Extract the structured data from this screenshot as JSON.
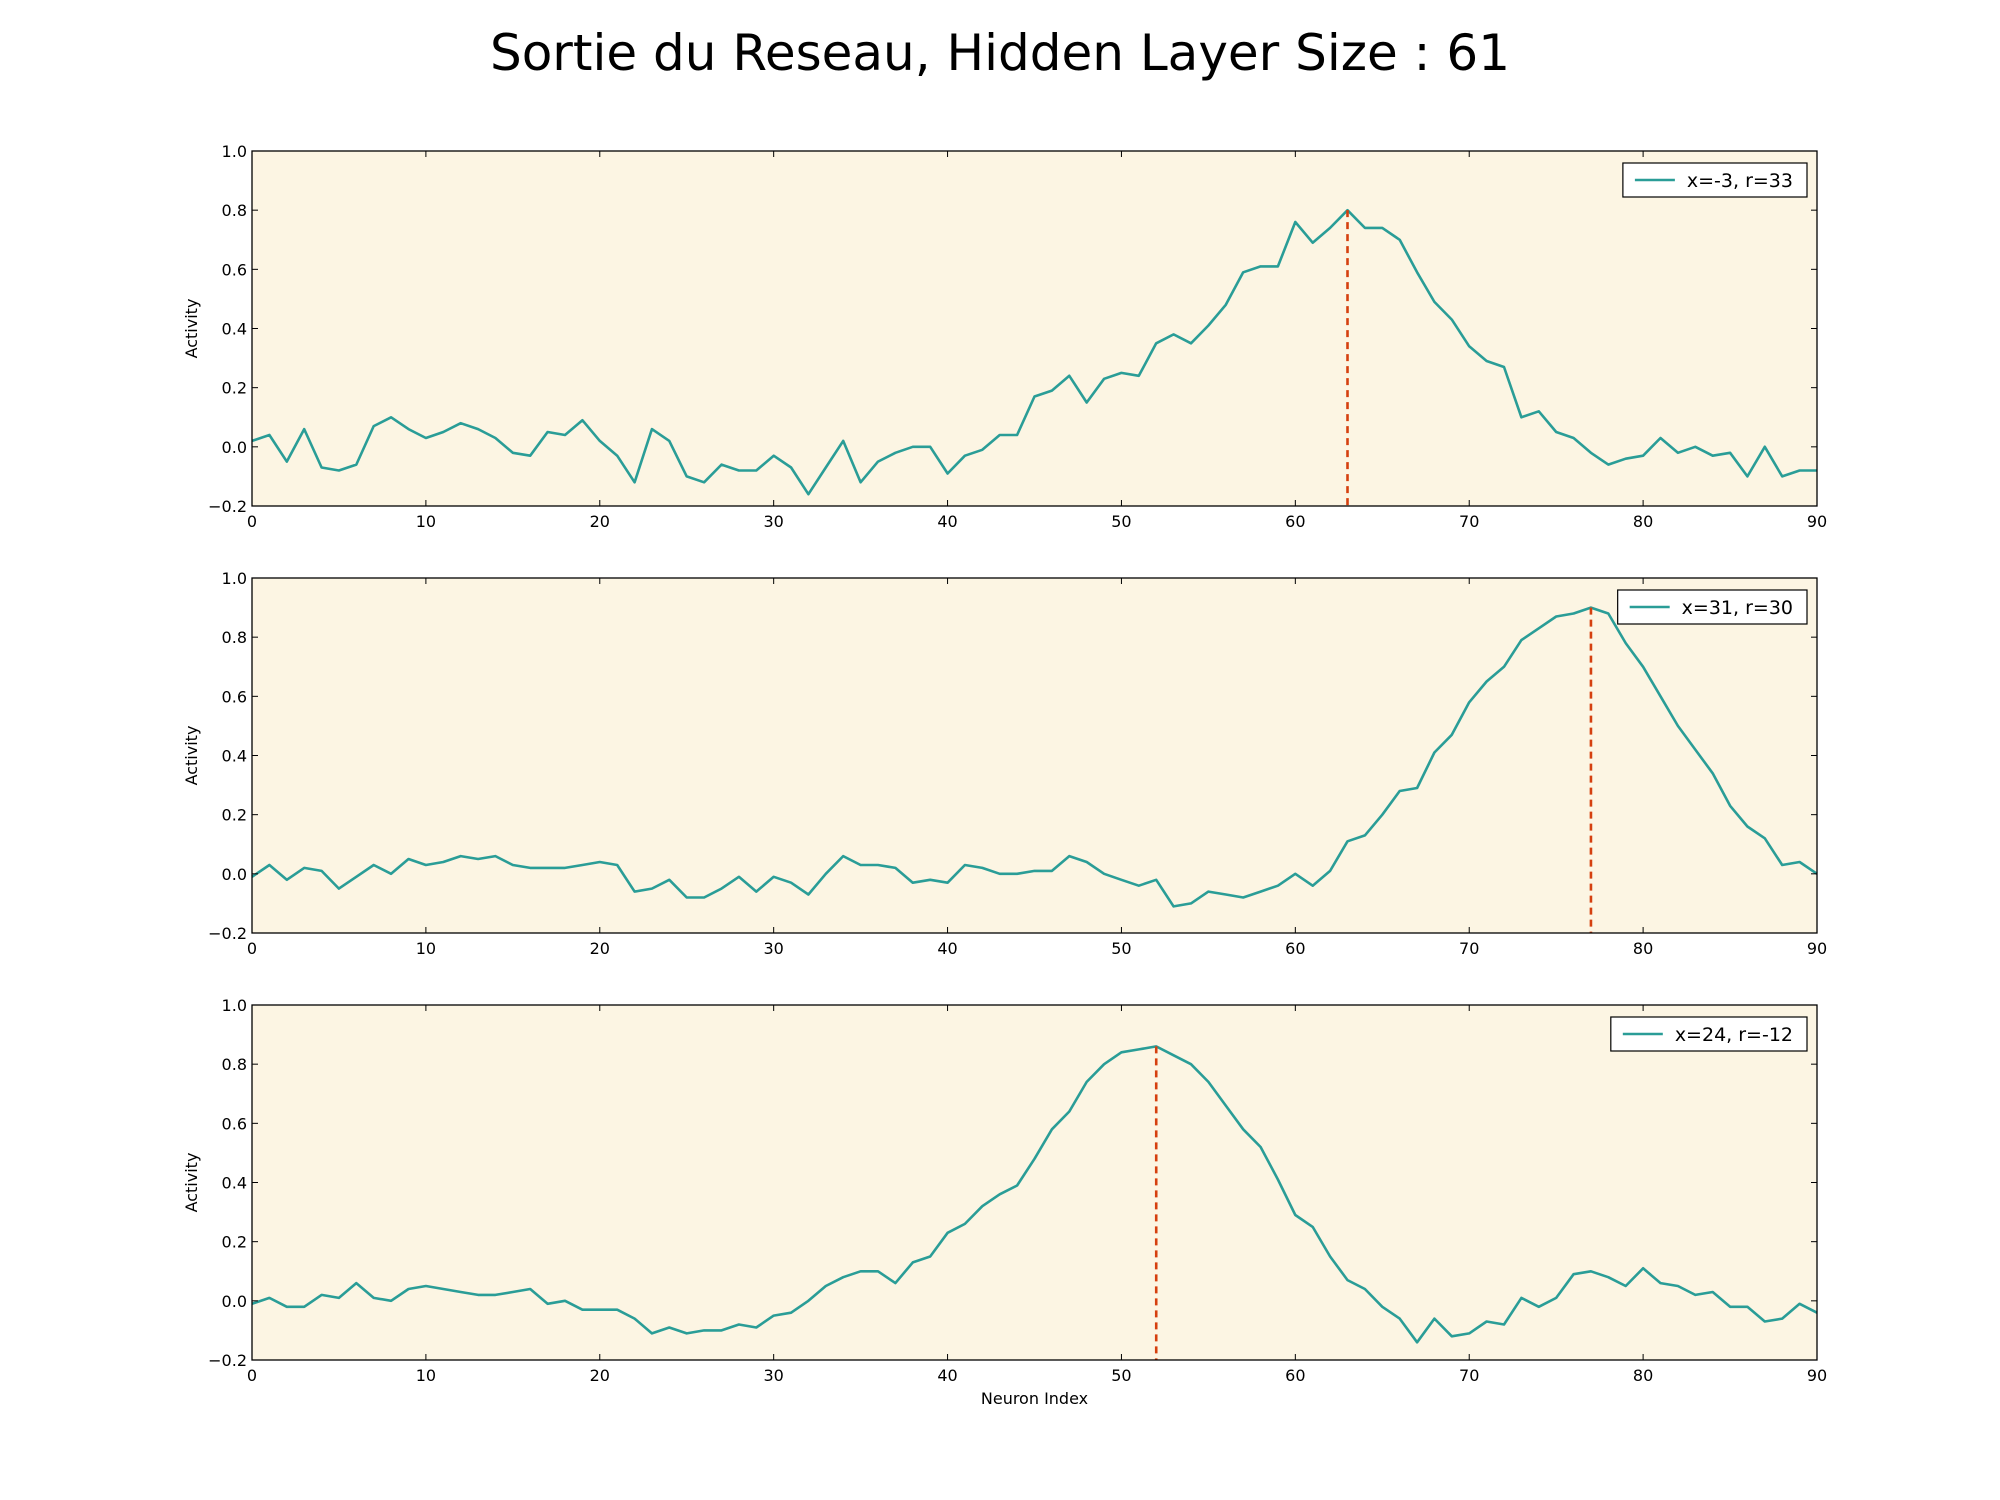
{
  "title": "Sortie du Reseau, Hidden Layer Size : 61",
  "colors": {
    "background": "#ffffff",
    "plot_background": "#fcf5e3",
    "series_line": "#2a9d97",
    "marker_line": "#d5400f",
    "axis": "#000000"
  },
  "chart_data": [
    {
      "type": "line",
      "title": "",
      "xlabel": "",
      "ylabel": "Activity",
      "xlim": [
        0,
        90
      ],
      "ylim": [
        -0.2,
        1.0
      ],
      "xticks": [
        "0",
        "10",
        "20",
        "30",
        "40",
        "50",
        "60",
        "70",
        "80",
        "90"
      ],
      "yticks": [
        "1.0",
        "0.8",
        "0.6",
        "0.4",
        "0.2",
        "0.0",
        "−0.2"
      ],
      "grid": false,
      "legend_position": "top-right",
      "series": [
        {
          "name": "x=-3, r=33",
          "x_start": 0,
          "values": [
            0.02,
            0.04,
            -0.05,
            0.06,
            -0.07,
            -0.08,
            -0.06,
            0.07,
            0.1,
            0.06,
            0.03,
            0.05,
            0.08,
            0.06,
            0.03,
            -0.02,
            -0.03,
            0.05,
            0.04,
            0.09,
            0.02,
            -0.03,
            -0.12,
            0.06,
            0.02,
            -0.1,
            -0.12,
            -0.06,
            -0.08,
            -0.08,
            -0.03,
            -0.07,
            -0.16,
            -0.07,
            0.02,
            -0.12,
            -0.05,
            -0.02,
            0.0,
            0.0,
            -0.09,
            -0.03,
            -0.01,
            0.04,
            0.04,
            0.17,
            0.19,
            0.24,
            0.15,
            0.23,
            0.25,
            0.24,
            0.35,
            0.38,
            0.35,
            0.41,
            0.48,
            0.59,
            0.61,
            0.61,
            0.76,
            0.69,
            0.74,
            0.8,
            0.74,
            0.74,
            0.7,
            0.59,
            0.49,
            0.43,
            0.34,
            0.29,
            0.27,
            0.1,
            0.12,
            0.05,
            0.03,
            -0.02,
            -0.06,
            -0.04,
            -0.03,
            0.03,
            -0.02,
            0.0,
            -0.03,
            -0.02,
            -0.1,
            0.0,
            -0.1,
            -0.08,
            -0.08
          ]
        }
      ],
      "marker_x": 63,
      "marker_y": 0.8
    },
    {
      "type": "line",
      "title": "",
      "xlabel": "",
      "ylabel": "Activity",
      "xlim": [
        0,
        90
      ],
      "ylim": [
        -0.2,
        1.0
      ],
      "xticks": [
        "0",
        "10",
        "20",
        "30",
        "40",
        "50",
        "60",
        "70",
        "80",
        "90"
      ],
      "yticks": [
        "1.0",
        "0.8",
        "0.6",
        "0.4",
        "0.2",
        "0.0",
        "−0.2"
      ],
      "grid": false,
      "legend_position": "top-right",
      "series": [
        {
          "name": "x=31, r=30",
          "x_start": 0,
          "values": [
            -0.01,
            0.03,
            -0.02,
            0.02,
            0.01,
            -0.05,
            -0.01,
            0.03,
            0.0,
            0.05,
            0.03,
            0.04,
            0.06,
            0.05,
            0.06,
            0.03,
            0.02,
            0.02,
            0.02,
            0.03,
            0.04,
            0.03,
            -0.06,
            -0.05,
            -0.02,
            -0.08,
            -0.08,
            -0.05,
            -0.01,
            -0.06,
            -0.01,
            -0.03,
            -0.07,
            0.0,
            0.06,
            0.03,
            0.03,
            0.02,
            -0.03,
            -0.02,
            -0.03,
            0.03,
            0.02,
            0.0,
            0.0,
            0.01,
            0.01,
            0.06,
            0.04,
            0.0,
            -0.02,
            -0.04,
            -0.02,
            -0.11,
            -0.1,
            -0.06,
            -0.07,
            -0.08,
            -0.06,
            -0.04,
            0.0,
            -0.04,
            0.01,
            0.11,
            0.13,
            0.2,
            0.28,
            0.29,
            0.41,
            0.47,
            0.58,
            0.65,
            0.7,
            0.79,
            0.83,
            0.87,
            0.88,
            0.9,
            0.88,
            0.78,
            0.7,
            0.6,
            0.5,
            0.42,
            0.34,
            0.23,
            0.16,
            0.12,
            0.03,
            0.04,
            0.0
          ]
        }
      ],
      "marker_x": 77,
      "marker_y": 0.9
    },
    {
      "type": "line",
      "title": "",
      "xlabel": "Neuron Index",
      "ylabel": "Activity",
      "xlim": [
        0,
        90
      ],
      "ylim": [
        -0.2,
        1.0
      ],
      "xticks": [
        "0",
        "10",
        "20",
        "30",
        "40",
        "50",
        "60",
        "70",
        "80",
        "90"
      ],
      "yticks": [
        "1.0",
        "0.8",
        "0.6",
        "0.4",
        "0.2",
        "0.0",
        "−0.2"
      ],
      "grid": false,
      "legend_position": "top-right",
      "series": [
        {
          "name": "x=24, r=-12",
          "x_start": 0,
          "values": [
            -0.01,
            0.01,
            -0.02,
            -0.02,
            0.02,
            0.01,
            0.06,
            0.01,
            0.0,
            0.04,
            0.05,
            0.04,
            0.03,
            0.02,
            0.02,
            0.03,
            0.04,
            -0.01,
            0.0,
            -0.03,
            -0.03,
            -0.03,
            -0.06,
            -0.11,
            -0.09,
            -0.11,
            -0.1,
            -0.1,
            -0.08,
            -0.09,
            -0.05,
            -0.04,
            0.0,
            0.05,
            0.08,
            0.1,
            0.1,
            0.06,
            0.13,
            0.15,
            0.23,
            0.26,
            0.32,
            0.36,
            0.39,
            0.48,
            0.58,
            0.64,
            0.74,
            0.8,
            0.84,
            0.85,
            0.86,
            0.83,
            0.8,
            0.74,
            0.66,
            0.58,
            0.52,
            0.41,
            0.29,
            0.25,
            0.15,
            0.07,
            0.04,
            -0.02,
            -0.06,
            -0.14,
            -0.06,
            -0.12,
            -0.11,
            -0.07,
            -0.08,
            0.01,
            -0.02,
            0.01,
            0.09,
            0.1,
            0.08,
            0.05,
            0.11,
            0.06,
            0.05,
            0.02,
            0.03,
            -0.02,
            -0.02,
            -0.07,
            -0.06,
            -0.01,
            -0.04
          ]
        }
      ],
      "marker_x": 52,
      "marker_y": 0.86
    }
  ]
}
